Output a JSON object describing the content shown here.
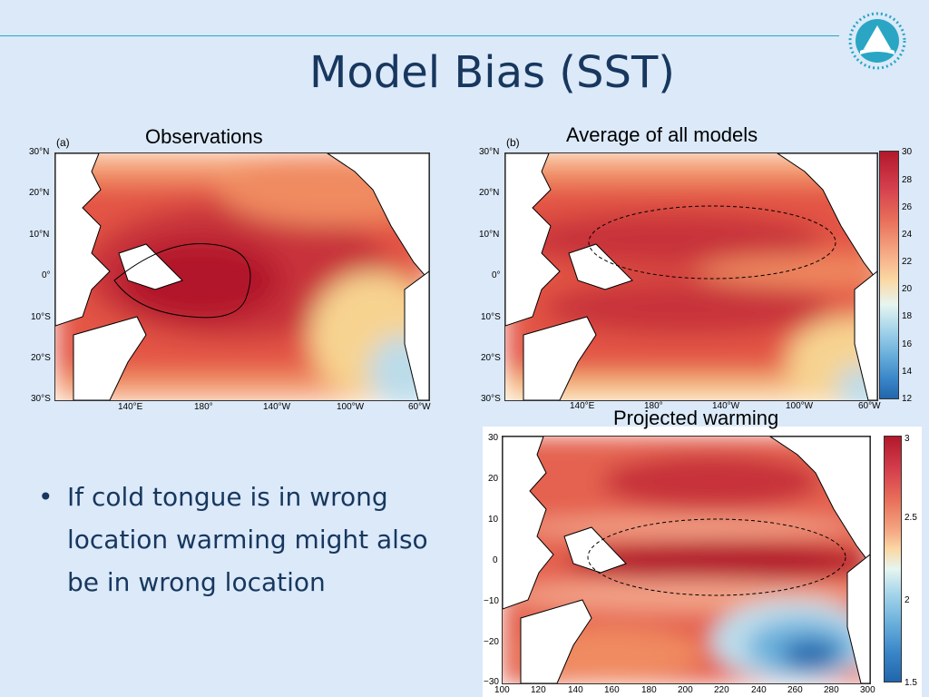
{
  "slide": {
    "title": "Model Bias (SST)",
    "bullet": "If cold tongue is in wrong location warming might also  be in wrong location"
  },
  "panels": {
    "observations": {
      "title": "Observations",
      "tag": "(a)",
      "y_ticks": [
        "30°N",
        "20°N",
        "10°N",
        "0°",
        "10°S",
        "20°S",
        "30°S"
      ],
      "x_ticks": [
        "140°E",
        "180°",
        "140°W",
        "100°W",
        "60°W"
      ]
    },
    "models": {
      "title": "Average of all models",
      "tag": "(b)",
      "y_ticks": [
        "30°N",
        "20°N",
        "10°N",
        "0°",
        "10°S",
        "20°S",
        "30°S"
      ],
      "x_ticks": [
        "140°E",
        "180°",
        "140°W",
        "100°W",
        "60°W"
      ],
      "colorbar": [
        "30",
        "28",
        "26",
        "24",
        "22",
        "20",
        "18",
        "16",
        "14",
        "12"
      ]
    },
    "warming": {
      "title": "Projected warming",
      "y_ticks": [
        "30",
        "20",
        "10",
        "0",
        "−10",
        "−20",
        "−30"
      ],
      "x_ticks": [
        "100",
        "120",
        "140",
        "160",
        "180",
        "200",
        "220",
        "240",
        "260",
        "280",
        "300"
      ],
      "colorbar": [
        "3",
        "2.5",
        "2",
        "1.5"
      ]
    }
  },
  "colors": {
    "background": "#dbe9f9",
    "title": "#17375e",
    "accent_line": "#2aa6c4",
    "warm_max": "#b2182b",
    "cold": "#2166ac"
  },
  "icons": {
    "logo": "organization-logo"
  }
}
